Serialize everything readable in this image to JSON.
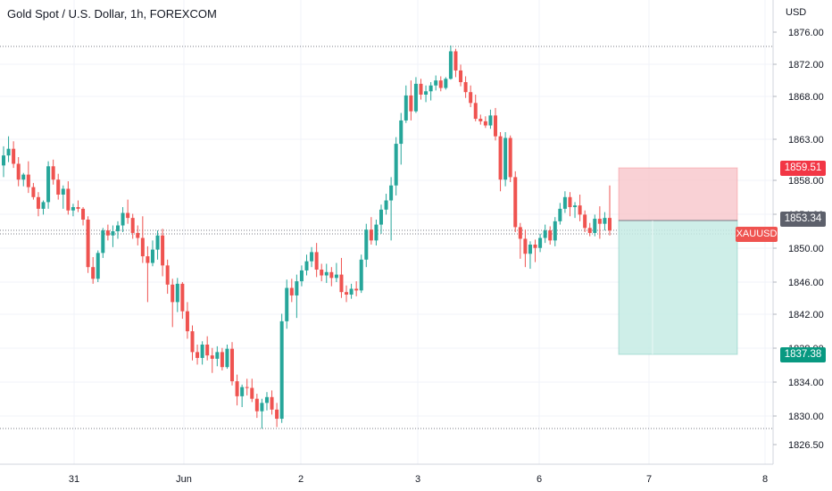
{
  "header": {
    "title": "Gold Spot / U.S. Dollar, 1h, FOREXCOM",
    "currency": "USD"
  },
  "badges": {
    "upper_price": "1859.51",
    "current_price": "1853.34",
    "symbol": "XAUUSD",
    "lower_price": "1837.38"
  },
  "colors": {
    "up": "#26a69a",
    "down": "#ef5350",
    "current_badge": "#5d606b",
    "stop_zone": "#f8c6ca",
    "target_zone": "#c6ebe4",
    "text": "#131722"
  },
  "chart_data": {
    "type": "candlestick",
    "title": "Gold Spot / U.S. Dollar, 1h, FOREXCOM",
    "y_unit": "USD",
    "ylim": [
      1825.5,
      1877.6
    ],
    "y_ticks": [
      "1876.00",
      "1872.00",
      "1868.00",
      "1863.00",
      "1858.00",
      "1854.00",
      "1850.00",
      "1846.00",
      "1842.00",
      "1838.00",
      "1834.00",
      "1830.00",
      "1826.50"
    ],
    "x_ticks": [
      "31",
      "Jun",
      "2",
      "3",
      "6",
      "7",
      "8"
    ],
    "horizontal_levels": [
      1874.2,
      1852.7,
      1852.2,
      1828.4
    ],
    "position": {
      "entry": 1853.34,
      "stop": 1859.51,
      "target": 1837.38
    },
    "ohlc": [
      [
        1860.0,
        1862.3,
        1858.6,
        1861.2
      ],
      [
        1861.2,
        1863.5,
        1860.4,
        1862.0
      ],
      [
        1862.0,
        1862.9,
        1859.7,
        1860.2
      ],
      [
        1860.2,
        1861.0,
        1857.5,
        1858.3
      ],
      [
        1858.3,
        1859.1,
        1857.5,
        1858.9
      ],
      [
        1858.9,
        1860.5,
        1856.7,
        1857.4
      ],
      [
        1857.4,
        1857.9,
        1855.9,
        1856.2
      ],
      [
        1856.2,
        1856.8,
        1853.9,
        1854.8
      ],
      [
        1854.8,
        1855.8,
        1854.1,
        1855.6
      ],
      [
        1855.6,
        1860.5,
        1854.8,
        1859.9
      ],
      [
        1859.9,
        1860.7,
        1857.7,
        1858.3
      ],
      [
        1858.3,
        1859.0,
        1855.9,
        1856.5
      ],
      [
        1856.5,
        1857.6,
        1854.8,
        1857.2
      ],
      [
        1857.2,
        1858.1,
        1854.1,
        1854.6
      ],
      [
        1854.6,
        1855.4,
        1853.9,
        1855.0
      ],
      [
        1855.0,
        1855.8,
        1854.4,
        1854.8
      ],
      [
        1854.8,
        1855.0,
        1852.8,
        1853.5
      ],
      [
        1853.5,
        1853.9,
        1847.1,
        1847.8
      ],
      [
        1847.8,
        1849.0,
        1845.8,
        1846.4
      ],
      [
        1846.4,
        1849.8,
        1846.0,
        1849.5
      ],
      [
        1849.5,
        1852.5,
        1848.9,
        1852.2
      ],
      [
        1852.2,
        1852.9,
        1851.0,
        1851.6
      ],
      [
        1851.6,
        1852.8,
        1850.2,
        1852.1
      ],
      [
        1852.1,
        1853.3,
        1851.2,
        1852.8
      ],
      [
        1852.8,
        1855.0,
        1852.0,
        1854.3
      ],
      [
        1854.3,
        1855.9,
        1853.0,
        1853.7
      ],
      [
        1853.7,
        1854.2,
        1851.2,
        1851.9
      ],
      [
        1851.9,
        1852.8,
        1850.4,
        1851.3
      ],
      [
        1851.3,
        1853.9,
        1848.3,
        1849.1
      ],
      [
        1849.1,
        1850.3,
        1843.6,
        1848.3
      ],
      [
        1848.3,
        1851.0,
        1847.9,
        1849.9
      ],
      [
        1849.9,
        1852.2,
        1848.7,
        1851.6
      ],
      [
        1851.6,
        1852.4,
        1846.7,
        1848.0
      ],
      [
        1848.0,
        1848.7,
        1844.6,
        1845.7
      ],
      [
        1845.7,
        1846.4,
        1840.6,
        1843.6
      ],
      [
        1843.6,
        1846.5,
        1842.4,
        1845.8
      ],
      [
        1845.8,
        1846.0,
        1841.6,
        1842.5
      ],
      [
        1842.5,
        1843.6,
        1839.2,
        1840.1
      ],
      [
        1840.1,
        1840.8,
        1836.6,
        1837.6
      ],
      [
        1837.6,
        1838.5,
        1836.1,
        1836.9
      ],
      [
        1836.9,
        1838.9,
        1836.1,
        1838.5
      ],
      [
        1838.5,
        1839.5,
        1836.6,
        1837.2
      ],
      [
        1837.2,
        1838.1,
        1835.1,
        1836.8
      ],
      [
        1836.8,
        1838.3,
        1835.9,
        1837.6
      ],
      [
        1837.6,
        1838.1,
        1835.4,
        1835.8
      ],
      [
        1835.8,
        1838.5,
        1835.6,
        1838.0
      ],
      [
        1838.0,
        1838.8,
        1833.6,
        1834.1
      ],
      [
        1834.1,
        1834.9,
        1831.2,
        1832.3
      ],
      [
        1832.3,
        1833.7,
        1831.0,
        1833.4
      ],
      [
        1833.4,
        1834.4,
        1832.4,
        1833.3
      ],
      [
        1833.3,
        1834.4,
        1831.6,
        1832.0
      ],
      [
        1832.0,
        1832.6,
        1829.7,
        1830.5
      ],
      [
        1830.5,
        1832.0,
        1828.4,
        1831.5
      ],
      [
        1831.5,
        1832.8,
        1830.6,
        1832.2
      ],
      [
        1832.2,
        1833.0,
        1830.1,
        1830.7
      ],
      [
        1830.7,
        1831.5,
        1828.6,
        1829.6
      ],
      [
        1829.6,
        1842.2,
        1829.1,
        1841.3
      ],
      [
        1841.3,
        1846.3,
        1840.4,
        1845.3
      ],
      [
        1845.3,
        1846.4,
        1843.6,
        1844.4
      ],
      [
        1844.4,
        1846.9,
        1841.7,
        1846.1
      ],
      [
        1846.1,
        1848.0,
        1845.5,
        1847.4
      ],
      [
        1847.4,
        1849.3,
        1846.8,
        1848.5
      ],
      [
        1848.5,
        1850.2,
        1847.8,
        1849.6
      ],
      [
        1849.6,
        1850.7,
        1846.6,
        1847.5
      ],
      [
        1847.5,
        1848.2,
        1846.1,
        1846.8
      ],
      [
        1846.8,
        1848.2,
        1845.9,
        1847.2
      ],
      [
        1847.2,
        1847.8,
        1845.5,
        1846.5
      ],
      [
        1846.5,
        1848.3,
        1846.0,
        1846.9
      ],
      [
        1846.9,
        1848.9,
        1844.1,
        1844.8
      ],
      [
        1844.8,
        1845.6,
        1843.6,
        1844.5
      ],
      [
        1844.5,
        1845.8,
        1844.0,
        1845.2
      ],
      [
        1845.2,
        1846.1,
        1844.3,
        1845.0
      ],
      [
        1845.0,
        1849.3,
        1844.7,
        1848.7
      ],
      [
        1848.7,
        1853.0,
        1847.8,
        1852.3
      ],
      [
        1852.3,
        1853.8,
        1850.5,
        1851.0
      ],
      [
        1851.0,
        1853.5,
        1850.4,
        1852.9
      ],
      [
        1852.9,
        1855.3,
        1851.8,
        1854.7
      ],
      [
        1854.7,
        1856.6,
        1854.1,
        1855.8
      ],
      [
        1855.8,
        1858.6,
        1851.0,
        1857.6
      ],
      [
        1857.6,
        1863.4,
        1856.4,
        1862.6
      ],
      [
        1862.6,
        1866.3,
        1860.1,
        1865.4
      ],
      [
        1865.4,
        1869.6,
        1865.1,
        1868.4
      ],
      [
        1868.4,
        1870.2,
        1865.4,
        1866.5
      ],
      [
        1866.5,
        1870.6,
        1866.3,
        1869.8
      ],
      [
        1869.8,
        1870.4,
        1867.9,
        1868.5
      ],
      [
        1868.5,
        1869.6,
        1867.6,
        1868.9
      ],
      [
        1868.9,
        1870.0,
        1867.8,
        1869.6
      ],
      [
        1869.6,
        1870.8,
        1869.0,
        1870.2
      ],
      [
        1870.2,
        1870.7,
        1868.9,
        1869.3
      ],
      [
        1869.3,
        1870.6,
        1869.1,
        1870.4
      ],
      [
        1870.4,
        1874.4,
        1870.3,
        1873.7
      ],
      [
        1873.7,
        1874.0,
        1870.6,
        1871.4
      ],
      [
        1871.4,
        1872.1,
        1869.5,
        1870.0
      ],
      [
        1870.0,
        1870.7,
        1868.1,
        1868.8
      ],
      [
        1868.8,
        1869.6,
        1867.0,
        1867.5
      ],
      [
        1867.5,
        1868.5,
        1865.3,
        1865.6
      ],
      [
        1865.6,
        1866.1,
        1864.9,
        1865.3
      ],
      [
        1865.3,
        1865.9,
        1864.5,
        1864.8
      ],
      [
        1864.8,
        1866.7,
        1864.4,
        1866.0
      ],
      [
        1866.0,
        1866.9,
        1863.0,
        1863.5
      ],
      [
        1863.5,
        1864.0,
        1856.9,
        1858.3
      ],
      [
        1858.3,
        1864.0,
        1857.5,
        1863.3
      ],
      [
        1863.3,
        1863.6,
        1858.0,
        1858.6
      ],
      [
        1858.6,
        1859.3,
        1852.0,
        1852.6
      ],
      [
        1852.6,
        1853.1,
        1848.8,
        1851.2
      ],
      [
        1851.2,
        1852.3,
        1847.8,
        1849.4
      ],
      [
        1849.4,
        1850.9,
        1847.6,
        1850.5
      ],
      [
        1850.5,
        1851.1,
        1848.4,
        1850.1
      ],
      [
        1850.1,
        1851.8,
        1849.6,
        1851.3
      ],
      [
        1851.3,
        1852.9,
        1850.7,
        1852.2
      ],
      [
        1852.2,
        1852.7,
        1850.5,
        1851.0
      ],
      [
        1851.0,
        1853.8,
        1850.3,
        1853.3
      ],
      [
        1853.3,
        1855.5,
        1852.9,
        1854.8
      ],
      [
        1854.8,
        1856.9,
        1854.3,
        1856.2
      ],
      [
        1856.2,
        1856.8,
        1853.9,
        1855.0
      ],
      [
        1855.0,
        1855.6,
        1853.7,
        1855.2
      ],
      [
        1855.2,
        1856.5,
        1853.3,
        1854.1
      ],
      [
        1854.1,
        1854.6,
        1852.0,
        1852.5
      ],
      [
        1852.5,
        1853.1,
        1851.5,
        1851.9
      ],
      [
        1851.9,
        1854.1,
        1851.5,
        1853.6
      ],
      [
        1853.6,
        1855.1,
        1851.2,
        1853.0
      ],
      [
        1853.0,
        1854.4,
        1852.2,
        1853.7
      ],
      [
        1853.7,
        1857.6,
        1851.6,
        1852.2
      ]
    ]
  }
}
